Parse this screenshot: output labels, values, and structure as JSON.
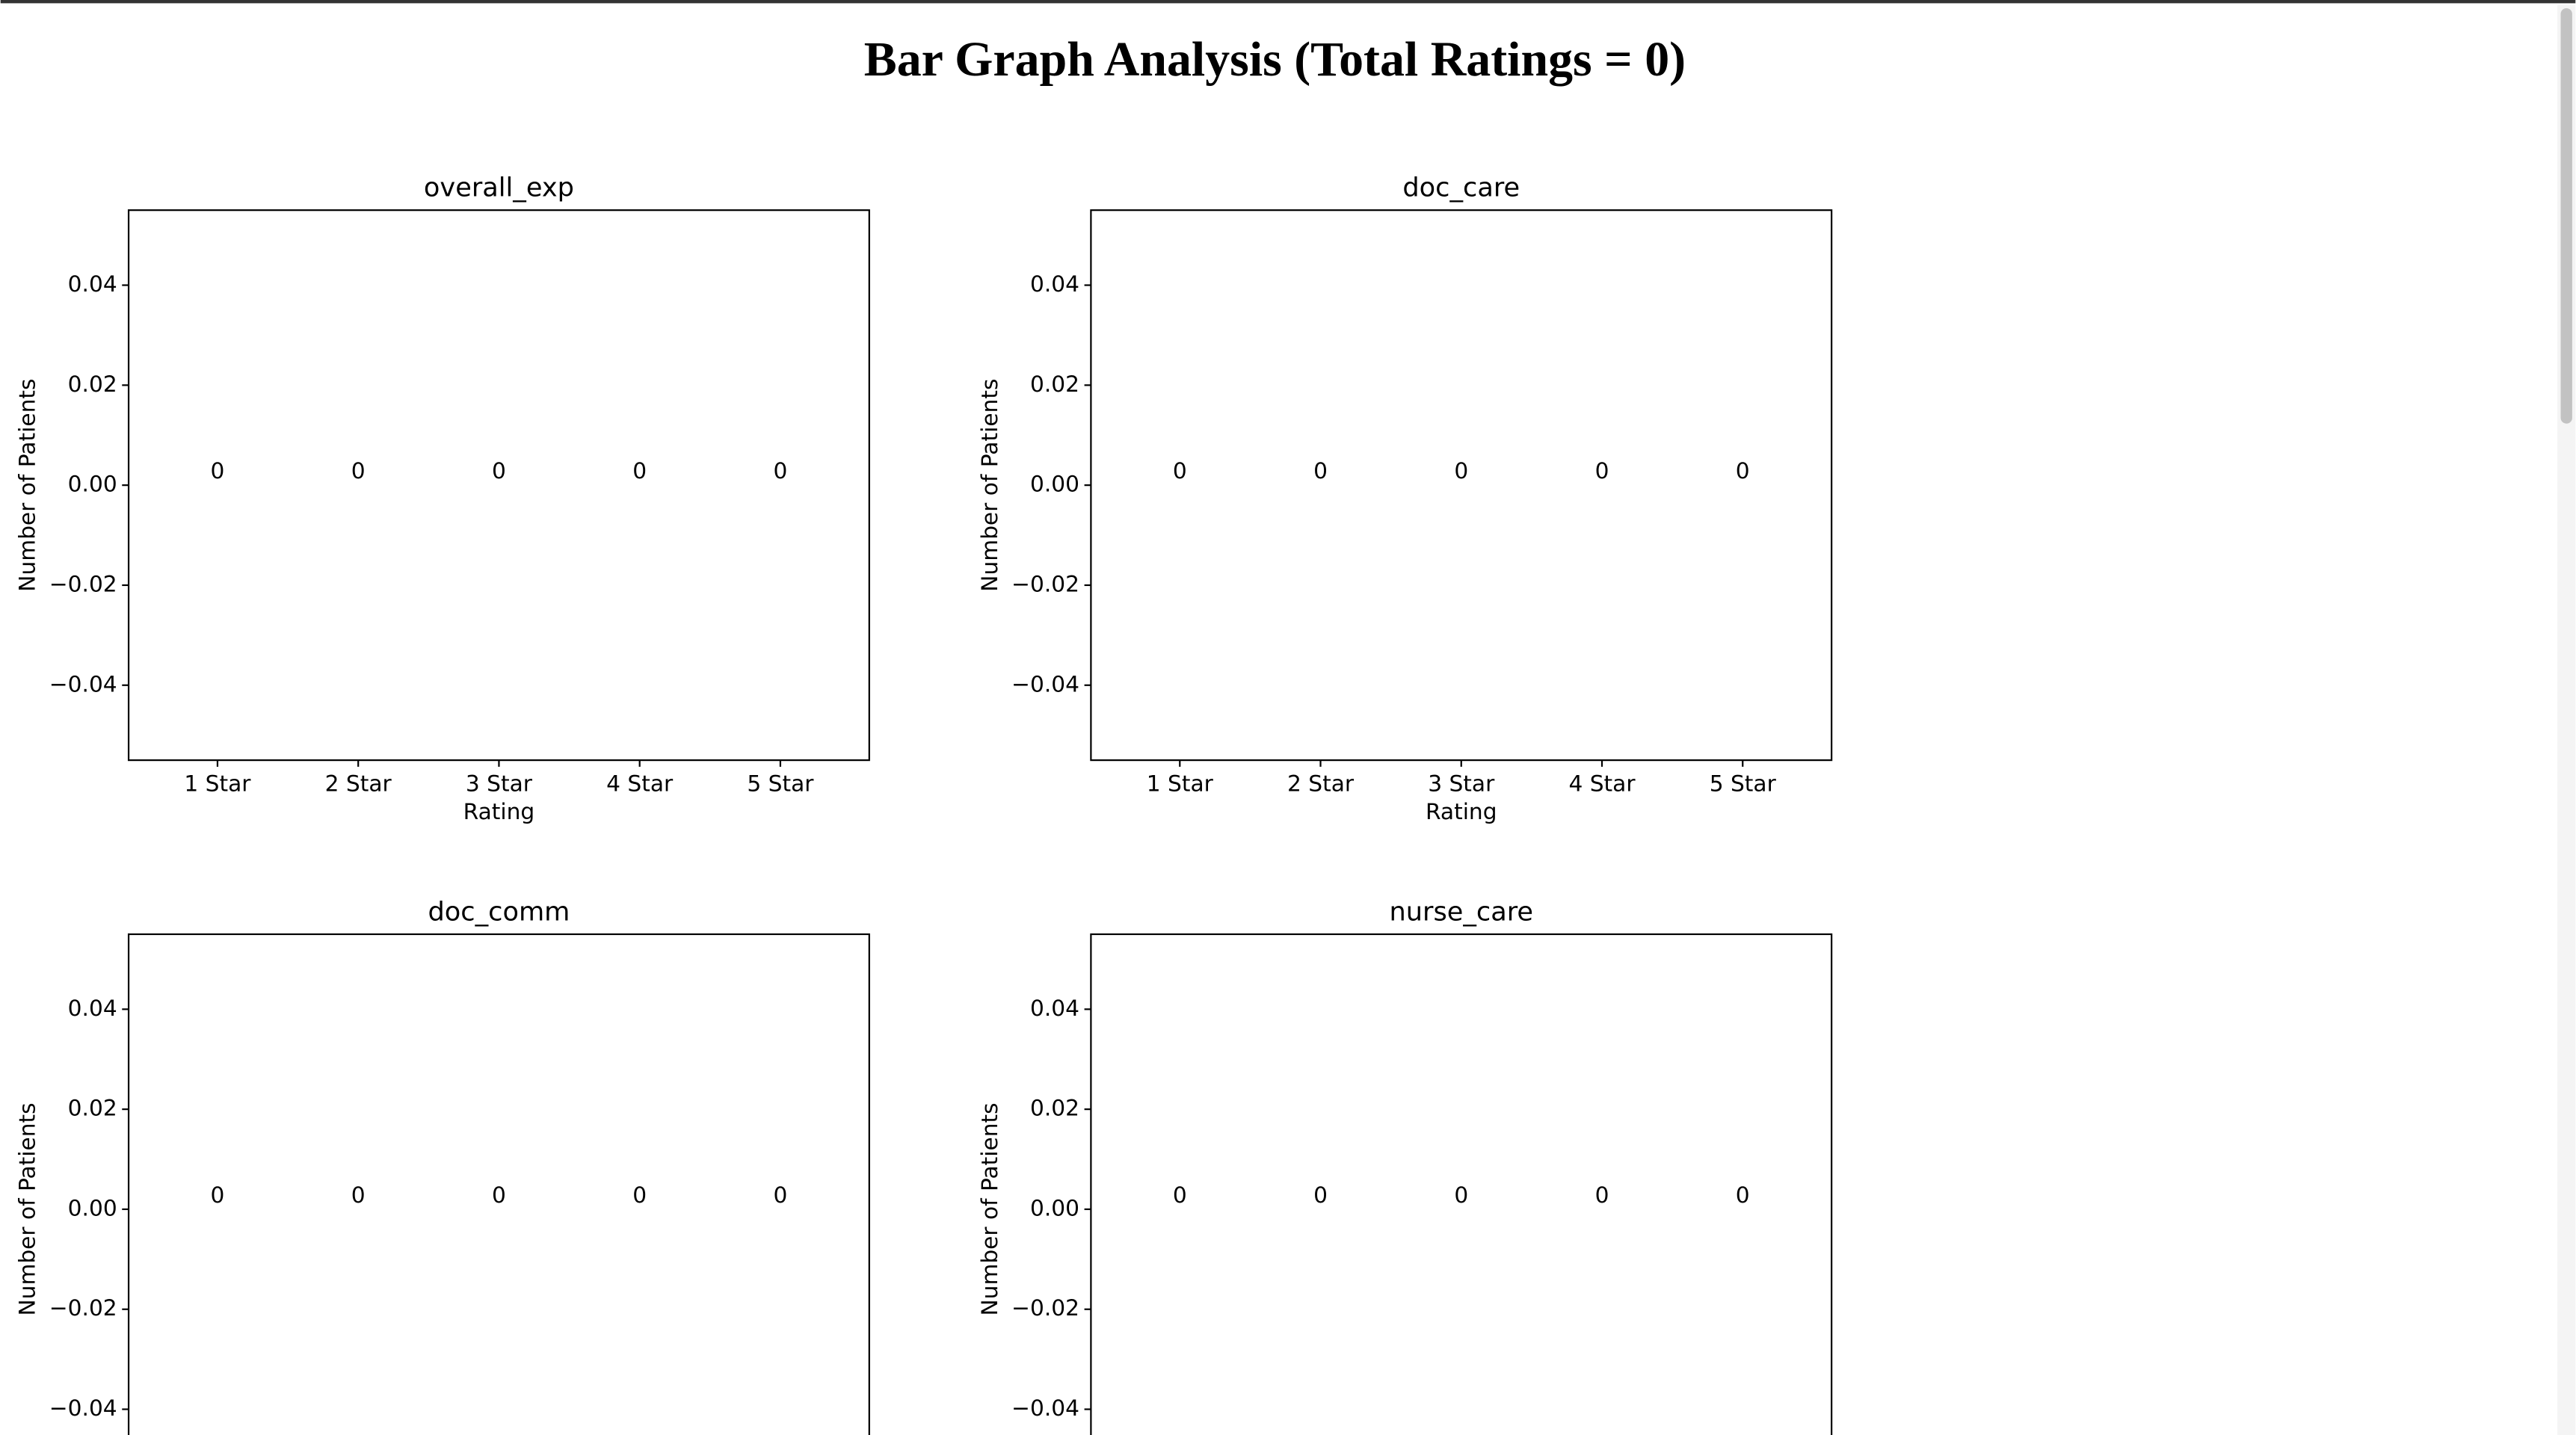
{
  "page": {
    "title": "Bar Graph Analysis (Total Ratings = 0)"
  },
  "chart_data": [
    {
      "type": "bar",
      "title": "overall_exp",
      "xlabel": "Rating",
      "ylabel": "Number of Patients",
      "categories": [
        "1 Star",
        "2 Star",
        "3 Star",
        "4 Star",
        "5 Star"
      ],
      "values": [
        0,
        0,
        0,
        0,
        0
      ],
      "color": "#1f77b4",
      "ylim": [
        -0.055,
        0.055
      ],
      "yticks": [
        {
          "value": -0.04,
          "label": "−0.04"
        },
        {
          "value": -0.02,
          "label": "−0.02"
        },
        {
          "value": 0,
          "label": "0.00"
        },
        0.02,
        0.04
      ]
    },
    {
      "type": "bar",
      "title": "doc_care",
      "xlabel": "Rating",
      "ylabel": "Number of Patients",
      "categories": [
        "1 Star",
        "2 Star",
        "3 Star",
        "4 Star",
        "5 Star"
      ],
      "values": [
        0,
        0,
        0,
        0,
        0
      ],
      "color": "#1f77b4",
      "ylim": [
        -0.055,
        0.055
      ],
      "yticks": [
        {
          "value": -0.04,
          "label": "−0.04"
        },
        {
          "value": -0.02,
          "label": "−0.02"
        },
        {
          "value": 0,
          "label": "0.00"
        },
        0.02,
        0.04
      ]
    },
    {
      "type": "bar",
      "title": "doc_comm",
      "ylabel": "Number of Patients",
      "categories": [
        null,
        null,
        null,
        null,
        null
      ],
      "values": [
        0,
        0,
        0,
        0,
        0
      ],
      "color": "#1f77b4",
      "ylim": [
        -0.055,
        0.055
      ],
      "yticks": [
        {
          "value": -0.04,
          "label": "−0.04"
        },
        {
          "value": -0.02,
          "label": "−0.02"
        },
        {
          "value": 0,
          "label": "0.00"
        },
        0.02,
        0.04
      ]
    },
    {
      "type": "bar",
      "title": "nurse_care",
      "ylabel": "Number of Patients",
      "categories": [
        null,
        null,
        null,
        null,
        null
      ],
      "values": [
        0,
        0,
        0,
        0,
        0
      ],
      "color": "#1f77b4",
      "ylim": [
        -0.055,
        0.055
      ],
      "yticks": [
        {
          "value": -0.04,
          "label": "−0.04"
        },
        {
          "value": -0.02,
          "label": "−0.02"
        },
        {
          "value": 0,
          "label": "0.00"
        },
        0.02,
        0.04
      ]
    }
  ]
}
